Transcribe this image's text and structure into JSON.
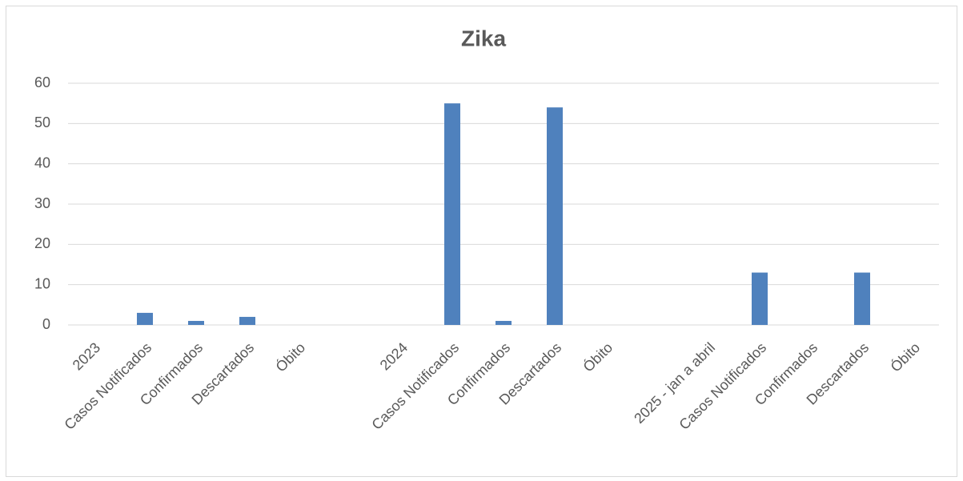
{
  "chart_data": {
    "type": "bar",
    "title": "Zika",
    "categories": [
      "2023",
      "Casos Notificados",
      "Confirmados",
      "Descartados",
      "Óbito",
      null,
      "2024",
      "Casos Notificados",
      "Confirmados",
      "Descartados",
      "Óbito",
      null,
      "2025 - jan a abril",
      "Casos Notificados",
      "Confirmados",
      "Descartados",
      "Óbito"
    ],
    "values": [
      null,
      3,
      1,
      2,
      0,
      null,
      null,
      55,
      1,
      54,
      0,
      null,
      null,
      13,
      0,
      13,
      0
    ],
    "color": "#4f81bd",
    "ylim": [
      0,
      60
    ],
    "yticks": [
      0,
      10,
      20,
      30,
      40,
      50,
      60
    ],
    "grid": true
  }
}
